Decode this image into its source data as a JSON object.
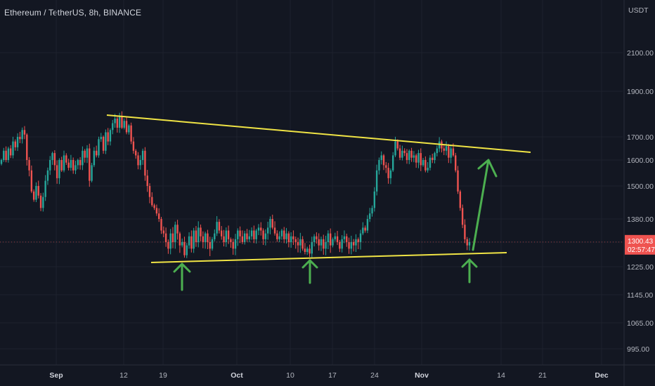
{
  "chart_data": {
    "type": "candlestick",
    "title": "Ethereum / TetherUS, 8h, BINANCE",
    "y_axis_unit": "USDT",
    "y_ticks": [
      2100.0,
      1900.0,
      1700.0,
      1600.0,
      1500.0,
      1380.0,
      1300.0,
      1225.0,
      1145.0,
      1065.0,
      995.0
    ],
    "x_ticks": [
      {
        "label": "Sep",
        "month": true
      },
      {
        "label": "12",
        "month": false
      },
      {
        "label": "19",
        "month": false
      },
      {
        "label": "Oct",
        "month": true
      },
      {
        "label": "10",
        "month": false
      },
      {
        "label": "17",
        "month": false
      },
      {
        "label": "24",
        "month": false
      },
      {
        "label": "Nov",
        "month": true
      },
      {
        "label": "14",
        "month": false
      },
      {
        "label": "21",
        "month": false
      },
      {
        "label": "Dec",
        "month": true
      }
    ],
    "current_price": {
      "value": "1300.43",
      "countdown": "02:57:47"
    },
    "colors": {
      "background": "#131722",
      "up": "#26a69a",
      "down": "#ef5350",
      "trendline": "#f0e445",
      "arrow": "#4caf50",
      "price_label": "#ef5350"
    },
    "series": [
      {
        "name": "",
        "values": [
          1600,
          1640,
          1600,
          1650,
          1620,
          1680,
          1655,
          1700,
          1690,
          1730,
          1710,
          1600,
          1560,
          1480,
          1450,
          1500,
          1465,
          1420,
          1460,
          1520,
          1560,
          1600,
          1630,
          1580,
          1530,
          1600,
          1560,
          1620,
          1590,
          1570,
          1600,
          1560,
          1580,
          1600,
          1580,
          1640,
          1610,
          1650,
          1520,
          1580,
          1640,
          1620,
          1690,
          1700,
          1640,
          1720,
          1680,
          1730,
          1760,
          1780,
          1740,
          1790,
          1740,
          1770,
          1720,
          1750,
          1680,
          1640,
          1620,
          1580,
          1600,
          1640,
          1540,
          1500,
          1460,
          1430,
          1420,
          1400,
          1380,
          1340,
          1330,
          1300,
          1280,
          1330,
          1300,
          1360,
          1330,
          1290,
          1300,
          1260,
          1290,
          1320,
          1280,
          1340,
          1300,
          1350,
          1320,
          1300,
          1330,
          1300,
          1280,
          1310,
          1330,
          1370,
          1340,
          1320,
          1300,
          1340,
          1310,
          1300,
          1280,
          1310,
          1340,
          1320,
          1300,
          1330,
          1310,
          1320,
          1340,
          1310,
          1340,
          1350,
          1340,
          1310,
          1330,
          1350,
          1380,
          1350,
          1330,
          1310,
          1320,
          1340,
          1310,
          1330,
          1300,
          1320,
          1310,
          1300,
          1290,
          1310,
          1280,
          1270,
          1280,
          1265,
          1300,
          1320,
          1310,
          1290,
          1310,
          1280,
          1300,
          1330,
          1290,
          1310,
          1320,
          1300,
          1280,
          1310,
          1320,
          1300,
          1280,
          1300,
          1290,
          1310,
          1300,
          1330,
          1350,
          1340,
          1380,
          1400,
          1420,
          1480,
          1560,
          1600,
          1620,
          1580,
          1570,
          1530,
          1560,
          1620,
          1680,
          1650,
          1610,
          1640,
          1630,
          1600,
          1640,
          1610,
          1620,
          1590,
          1630,
          1580,
          1600,
          1560,
          1570,
          1610,
          1600,
          1630,
          1650,
          1680,
          1650,
          1640,
          1660,
          1610,
          1650,
          1620,
          1560,
          1480,
          1420,
          1360,
          1310,
          1290,
          1300
        ]
      }
    ]
  }
}
